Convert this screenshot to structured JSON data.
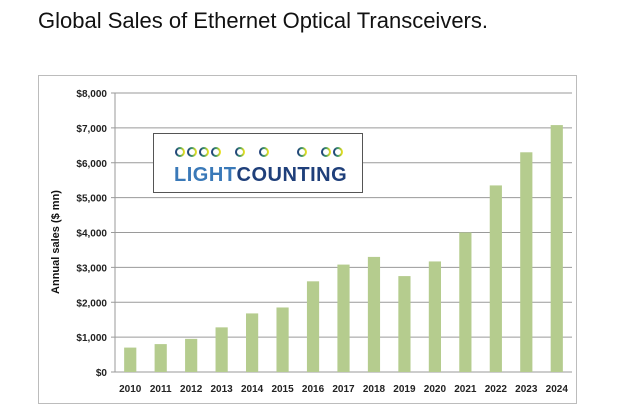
{
  "page": {
    "title": "Global Sales of Ethernet Optical Transceivers."
  },
  "logo": {
    "part1": "LIGHT",
    "part2": "COUNTING",
    "colors": {
      "light": "#3a79b8",
      "counting": "#1f3f7a",
      "chain_start": "#1f3f7a",
      "chain_end": "#e8e020"
    }
  },
  "chart_data": {
    "type": "bar",
    "title": "",
    "xlabel": "",
    "ylabel": "Annual sales ($ mn)",
    "categories": [
      "2010",
      "2011",
      "2012",
      "2013",
      "2014",
      "2015",
      "2016",
      "2017",
      "2018",
      "2019",
      "2020",
      "2021",
      "2022",
      "2023",
      "2024"
    ],
    "values": [
      700,
      800,
      950,
      1280,
      1680,
      1850,
      2600,
      3080,
      3300,
      2750,
      3170,
      4000,
      5350,
      6300,
      7080
    ],
    "ylim": [
      0,
      8000
    ],
    "yticks": [
      0,
      1000,
      2000,
      3000,
      4000,
      5000,
      6000,
      7000,
      8000
    ],
    "ytick_labels": [
      "$0",
      "$1,000",
      "$2,000",
      "$3,000",
      "$4,000",
      "$5,000",
      "$6,000",
      "$7,000",
      "$8,000"
    ],
    "grid": true,
    "bar_color": "#b5cc8e",
    "grid_color": "#9a9a9a"
  }
}
